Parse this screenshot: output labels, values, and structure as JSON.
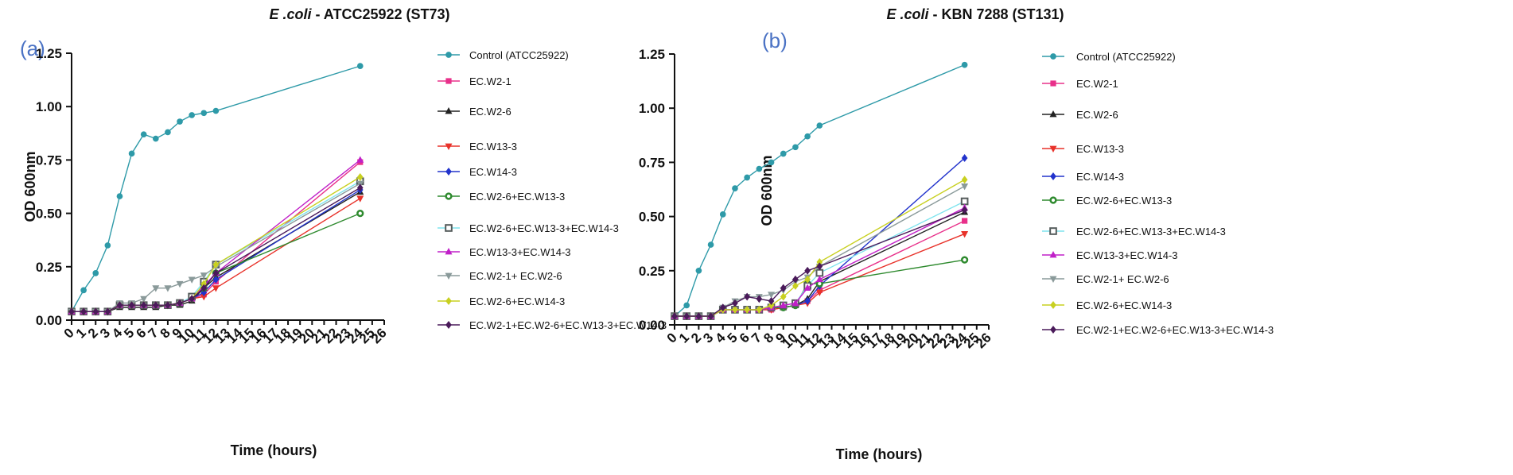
{
  "chart_data": [
    {
      "type": "line",
      "panel_label": "(a)",
      "title_italic": "E .coli",
      "title_rest": " - ATCC25922 (ST73)",
      "xlabel": "Time (hours)",
      "ylabel": "OD 600nm",
      "xlim": [
        0,
        26
      ],
      "ylim": [
        0,
        1.25
      ],
      "x_ticks": [
        0,
        1,
        2,
        3,
        4,
        5,
        6,
        7,
        8,
        9,
        10,
        11,
        12,
        13,
        14,
        15,
        16,
        17,
        18,
        19,
        20,
        21,
        22,
        23,
        24,
        25,
        26
      ],
      "y_ticks": [
        "0.00",
        "0.25",
        "0.50",
        "0.75",
        "1.00",
        "1.25"
      ],
      "x": [
        0,
        1,
        2,
        3,
        4,
        5,
        6,
        7,
        8,
        9,
        10,
        11,
        12,
        24
      ],
      "series": [
        {
          "name": "Control (ATCC25922)",
          "color": "#2e9aa8",
          "marker": "circle",
          "values": [
            0.04,
            0.14,
            0.22,
            0.35,
            0.58,
            0.78,
            0.87,
            0.85,
            0.88,
            0.93,
            0.96,
            0.97,
            0.98,
            1.19
          ]
        },
        {
          "name": "EC.W2-1",
          "color": "#e8308a",
          "marker": "square",
          "values": [
            0.04,
            0.04,
            0.04,
            0.04,
            0.07,
            0.07,
            0.07,
            0.07,
            0.07,
            0.08,
            0.1,
            0.12,
            0.18,
            0.74
          ]
        },
        {
          "name": "EC.W2-6",
          "color": "#222222",
          "marker": "triangle",
          "values": [
            0.04,
            0.04,
            0.04,
            0.04,
            0.06,
            0.06,
            0.06,
            0.06,
            0.07,
            0.07,
            0.09,
            0.15,
            0.2,
            0.6
          ]
        },
        {
          "name": "EC.W13-3",
          "color": "#e8322a",
          "marker": "triangle-down",
          "values": [
            0.04,
            0.04,
            0.04,
            0.04,
            0.07,
            0.07,
            0.07,
            0.07,
            0.07,
            0.08,
            0.1,
            0.11,
            0.15,
            0.57
          ]
        },
        {
          "name": "EC.W14-3",
          "color": "#2233cc",
          "marker": "diamond",
          "values": [
            0.04,
            0.04,
            0.04,
            0.04,
            0.07,
            0.07,
            0.07,
            0.07,
            0.07,
            0.08,
            0.1,
            0.13,
            0.19,
            0.61
          ]
        },
        {
          "name": "EC.W2-6+EC.W13-3",
          "color": "#2e8a2e",
          "marker": "hex",
          "values": [
            0.04,
            0.04,
            0.04,
            0.04,
            0.07,
            0.07,
            0.07,
            0.07,
            0.07,
            0.08,
            0.1,
            0.15,
            0.22,
            0.5
          ]
        },
        {
          "name": "EC.W2-6+EC.W13-3+EC.W14-3",
          "color": "#7fe4ee",
          "marker": "square-open",
          "values": [
            0.04,
            0.04,
            0.04,
            0.04,
            0.07,
            0.07,
            0.07,
            0.07,
            0.07,
            0.08,
            0.11,
            0.18,
            0.26,
            0.65
          ]
        },
        {
          "name": "EC.W13-3+EC.W14-3",
          "color": "#c020c8",
          "marker": "triangle",
          "values": [
            0.04,
            0.04,
            0.04,
            0.04,
            0.07,
            0.07,
            0.07,
            0.07,
            0.07,
            0.08,
            0.1,
            0.16,
            0.22,
            0.75
          ]
        },
        {
          "name": "EC.W2-1+ EC.W2-6",
          "color": "#8a9a9a",
          "marker": "triangle-down",
          "values": [
            0.04,
            0.04,
            0.04,
            0.04,
            0.08,
            0.08,
            0.1,
            0.15,
            0.15,
            0.17,
            0.19,
            0.21,
            0.25,
            0.64
          ]
        },
        {
          "name": "EC.W2-6+EC.W14-3",
          "color": "#c8d020",
          "marker": "diamond",
          "values": [
            0.04,
            0.04,
            0.04,
            0.04,
            0.07,
            0.07,
            0.07,
            0.07,
            0.07,
            0.08,
            0.1,
            0.17,
            0.26,
            0.67
          ]
        },
        {
          "name": "EC.W2-1+EC.W2-6+EC.W13-3+EC.W14-3",
          "color": "#4a1a5a",
          "marker": "diamond",
          "values": [
            0.04,
            0.04,
            0.04,
            0.04,
            0.07,
            0.07,
            0.07,
            0.07,
            0.07,
            0.08,
            0.1,
            0.15,
            0.22,
            0.62
          ]
        }
      ]
    },
    {
      "type": "line",
      "panel_label": "(b)",
      "title_italic": "E .coli",
      "title_rest": " - KBN 7288 (ST131)",
      "xlabel": "Time (hours)",
      "ylabel": "OD 600nm",
      "xlim": [
        0,
        26
      ],
      "ylim": [
        0,
        1.25
      ],
      "x_ticks": [
        0,
        1,
        2,
        3,
        4,
        5,
        6,
        7,
        8,
        9,
        10,
        11,
        12,
        13,
        14,
        15,
        16,
        17,
        18,
        19,
        20,
        21,
        22,
        23,
        24,
        25,
        26
      ],
      "y_ticks": [
        "0.00",
        "0.25",
        "0.50",
        "0.75",
        "1.00",
        "1.25"
      ],
      "x": [
        0,
        1,
        2,
        3,
        4,
        5,
        6,
        7,
        8,
        9,
        10,
        11,
        12,
        24
      ],
      "series": [
        {
          "name": "Control (ATCC25922)",
          "color": "#2e9aa8",
          "marker": "circle",
          "values": [
            0.04,
            0.09,
            0.25,
            0.37,
            0.51,
            0.63,
            0.68,
            0.72,
            0.75,
            0.79,
            0.82,
            0.87,
            0.92,
            1.2
          ]
        },
        {
          "name": "EC.W2-1",
          "color": "#e8308a",
          "marker": "square",
          "values": [
            0.04,
            0.04,
            0.04,
            0.04,
            0.07,
            0.07,
            0.07,
            0.07,
            0.07,
            0.08,
            0.09,
            0.11,
            0.16,
            0.48
          ]
        },
        {
          "name": "EC.W2-6",
          "color": "#222222",
          "marker": "triangle",
          "values": [
            0.04,
            0.04,
            0.04,
            0.04,
            0.07,
            0.07,
            0.07,
            0.07,
            0.08,
            0.08,
            0.09,
            0.12,
            0.2,
            0.52
          ]
        },
        {
          "name": "EC.W13-3",
          "color": "#e8322a",
          "marker": "triangle-down",
          "values": [
            0.04,
            0.04,
            0.04,
            0.04,
            0.07,
            0.07,
            0.07,
            0.07,
            0.07,
            0.08,
            0.09,
            0.1,
            0.15,
            0.42
          ]
        },
        {
          "name": "EC.W14-3",
          "color": "#2233cc",
          "marker": "diamond",
          "values": [
            0.04,
            0.04,
            0.04,
            0.04,
            0.07,
            0.07,
            0.07,
            0.07,
            0.08,
            0.08,
            0.09,
            0.11,
            0.18,
            0.77
          ]
        },
        {
          "name": "EC.W2-6+EC.W13-3",
          "color": "#2e8a2e",
          "marker": "hex",
          "values": [
            0.04,
            0.04,
            0.04,
            0.04,
            0.07,
            0.07,
            0.07,
            0.07,
            0.08,
            0.08,
            0.09,
            0.19,
            0.19,
            0.3
          ]
        },
        {
          "name": "EC.W2-6+EC.W13-3+EC.W14-3",
          "color": "#7fe4ee",
          "marker": "square-open",
          "values": [
            0.04,
            0.04,
            0.04,
            0.04,
            0.07,
            0.07,
            0.07,
            0.07,
            0.08,
            0.09,
            0.1,
            0.18,
            0.24,
            0.57
          ]
        },
        {
          "name": "EC.W13-3+EC.W14-3",
          "color": "#c020c8",
          "marker": "triangle",
          "values": [
            0.04,
            0.04,
            0.04,
            0.04,
            0.07,
            0.07,
            0.07,
            0.07,
            0.08,
            0.09,
            0.1,
            0.17,
            0.21,
            0.54
          ]
        },
        {
          "name": "EC.W2-1+ EC.W2-6",
          "color": "#8a9a9a",
          "marker": "triangle-down",
          "values": [
            0.04,
            0.04,
            0.04,
            0.04,
            0.08,
            0.11,
            0.13,
            0.13,
            0.14,
            0.16,
            0.2,
            0.22,
            0.27,
            0.64
          ]
        },
        {
          "name": "EC.W2-6+EC.W14-3",
          "color": "#c8d020",
          "marker": "diamond",
          "values": [
            0.04,
            0.04,
            0.04,
            0.04,
            0.07,
            0.07,
            0.07,
            0.07,
            0.09,
            0.13,
            0.18,
            0.21,
            0.29,
            0.67
          ]
        },
        {
          "name": "EC.W2-1+EC.W2-6+EC.W13-3+EC.W14-3",
          "color": "#4a1a5a",
          "marker": "diamond",
          "values": [
            0.04,
            0.04,
            0.04,
            0.04,
            0.08,
            0.1,
            0.13,
            0.12,
            0.11,
            0.17,
            0.21,
            0.25,
            0.27,
            0.53
          ]
        }
      ]
    }
  ]
}
